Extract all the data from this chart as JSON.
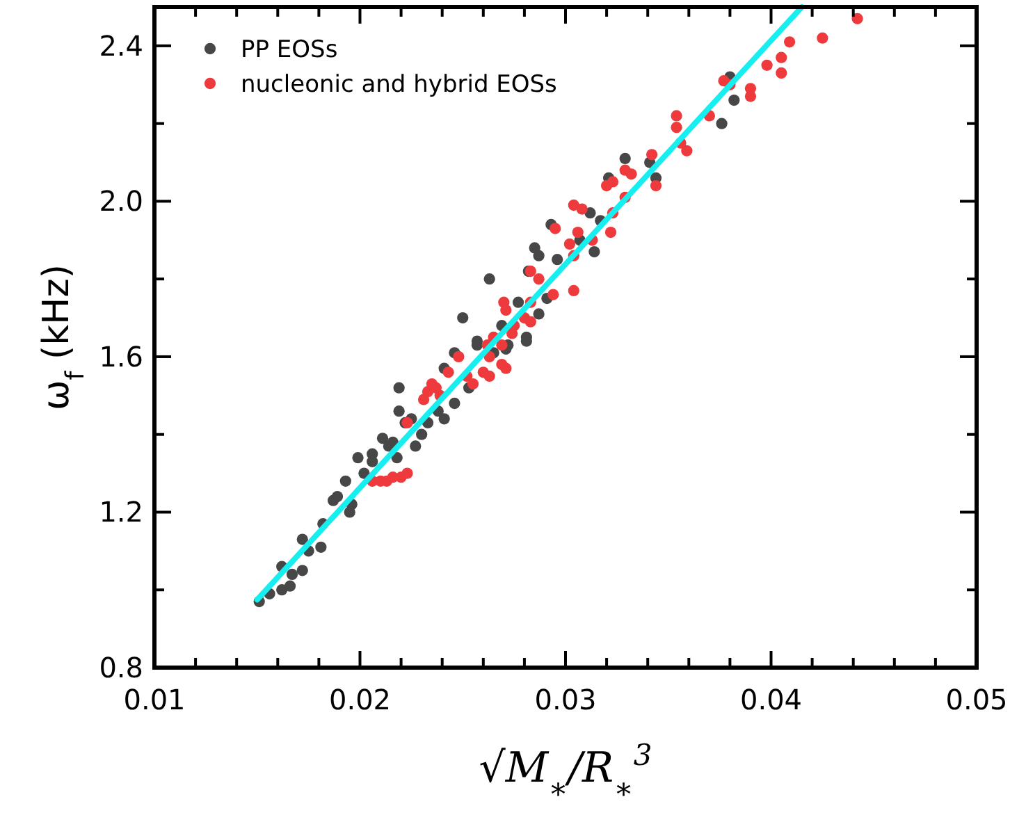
{
  "chart_data": {
    "type": "scatter",
    "xlabel": "√M$_{∗}$/R$_{∗}$$^{3}$",
    "ylabel": "ω$_{f}$ (kHz)",
    "xlim": [
      0.01,
      0.05
    ],
    "xticks": [
      0.01,
      0.02,
      0.03,
      0.04,
      0.05
    ],
    "ylim": [
      0.8,
      2.5
    ],
    "yticks": [
      0.8,
      1.2,
      1.6,
      {
        "value": 2,
        "label": "2.0"
      },
      2.4
    ],
    "legend": "top left",
    "marker": "circle",
    "grid": false,
    "series": [
      {
        "name": "PP EOSs",
        "color": "#474747",
        "x": [
          0.0151,
          0.0156,
          0.0162,
          0.0166,
          0.0162,
          0.0167,
          0.0172,
          0.0172,
          0.0175,
          0.0181,
          0.0182,
          0.0187,
          0.0189,
          0.0193,
          0.0196,
          0.0195,
          0.0199,
          0.0202,
          0.0206,
          0.0206,
          0.0211,
          0.0214,
          0.0216,
          0.0218,
          0.0219,
          0.0219,
          0.0222,
          0.0225,
          0.0227,
          0.023,
          0.0233,
          0.0238,
          0.0241,
          0.0246,
          0.0246,
          0.0241,
          0.0253,
          0.0257,
          0.0265,
          0.0272,
          0.0329,
          0.0341,
          0.0344,
          0.0321,
          0.0312,
          0.0317,
          0.0293,
          0.0314,
          0.0307,
          0.0285,
          0.0287,
          0.0296,
          0.0282,
          0.0263,
          0.0291,
          0.0277,
          0.0287,
          0.025,
          0.0269,
          0.0281,
          0.0281,
          0.0257,
          0.0271,
          0.038,
          0.0382,
          0.0376
        ],
        "values": [
          0.97,
          0.99,
          1.0,
          1.01,
          1.06,
          1.04,
          1.05,
          1.13,
          1.1,
          1.11,
          1.17,
          1.23,
          1.24,
          1.28,
          1.22,
          1.2,
          1.34,
          1.3,
          1.35,
          1.33,
          1.39,
          1.37,
          1.38,
          1.34,
          1.46,
          1.52,
          1.43,
          1.44,
          1.37,
          1.4,
          1.43,
          1.46,
          1.44,
          1.48,
          1.61,
          1.57,
          1.52,
          1.63,
          1.61,
          1.63,
          2.11,
          2.1,
          2.06,
          2.06,
          1.97,
          1.95,
          1.94,
          1.87,
          1.9,
          1.88,
          1.86,
          1.85,
          1.82,
          1.8,
          1.75,
          1.74,
          1.71,
          1.7,
          1.68,
          1.65,
          1.64,
          1.64,
          1.62,
          2.32,
          2.26,
          2.2
        ]
      },
      {
        "name": "nucleonic and hybrid EOSs",
        "color": "#ee3a3c",
        "x": [
          0.0206,
          0.021,
          0.0213,
          0.0216,
          0.022,
          0.0223,
          0.0223,
          0.0231,
          0.0233,
          0.0235,
          0.0237,
          0.0239,
          0.0243,
          0.0248,
          0.0252,
          0.0255,
          0.026,
          0.0263,
          0.0263,
          0.0265,
          0.0269,
          0.0271,
          0.0342,
          0.0359,
          0.0329,
          0.0332,
          0.032,
          0.0323,
          0.0344,
          0.0329,
          0.0304,
          0.0308,
          0.0323,
          0.0295,
          0.0306,
          0.0313,
          0.0322,
          0.0302,
          0.0304,
          0.0283,
          0.0287,
          0.0294,
          0.0304,
          0.027,
          0.0271,
          0.0283,
          0.028,
          0.0283,
          0.0275,
          0.0274,
          0.0269,
          0.0262,
          0.0442,
          0.0425,
          0.0409,
          0.0405,
          0.0398,
          0.0405,
          0.039,
          0.039,
          0.037,
          0.0377,
          0.038,
          0.0354,
          0.0354,
          0.0356
        ],
        "values": [
          1.28,
          1.28,
          1.28,
          1.29,
          1.29,
          1.3,
          1.43,
          1.49,
          1.51,
          1.53,
          1.52,
          1.5,
          1.56,
          1.6,
          1.55,
          1.53,
          1.56,
          1.55,
          1.6,
          1.65,
          1.58,
          1.57,
          2.12,
          2.13,
          2.08,
          2.07,
          2.04,
          2.05,
          2.04,
          2.01,
          1.99,
          1.98,
          1.97,
          1.93,
          1.92,
          1.9,
          1.92,
          1.89,
          1.86,
          1.82,
          1.8,
          1.76,
          1.77,
          1.74,
          1.72,
          1.74,
          1.7,
          1.69,
          1.68,
          1.66,
          1.63,
          1.63,
          2.47,
          2.42,
          2.41,
          2.37,
          2.35,
          2.33,
          2.29,
          2.27,
          2.22,
          2.31,
          2.3,
          2.22,
          2.19,
          2.15
        ]
      },
      {
        "type": "line",
        "color": "#16eef0",
        "x": [
          0.015,
          0.0415
        ],
        "values": [
          0.975,
          2.5
        ],
        "marker": "none"
      }
    ]
  }
}
